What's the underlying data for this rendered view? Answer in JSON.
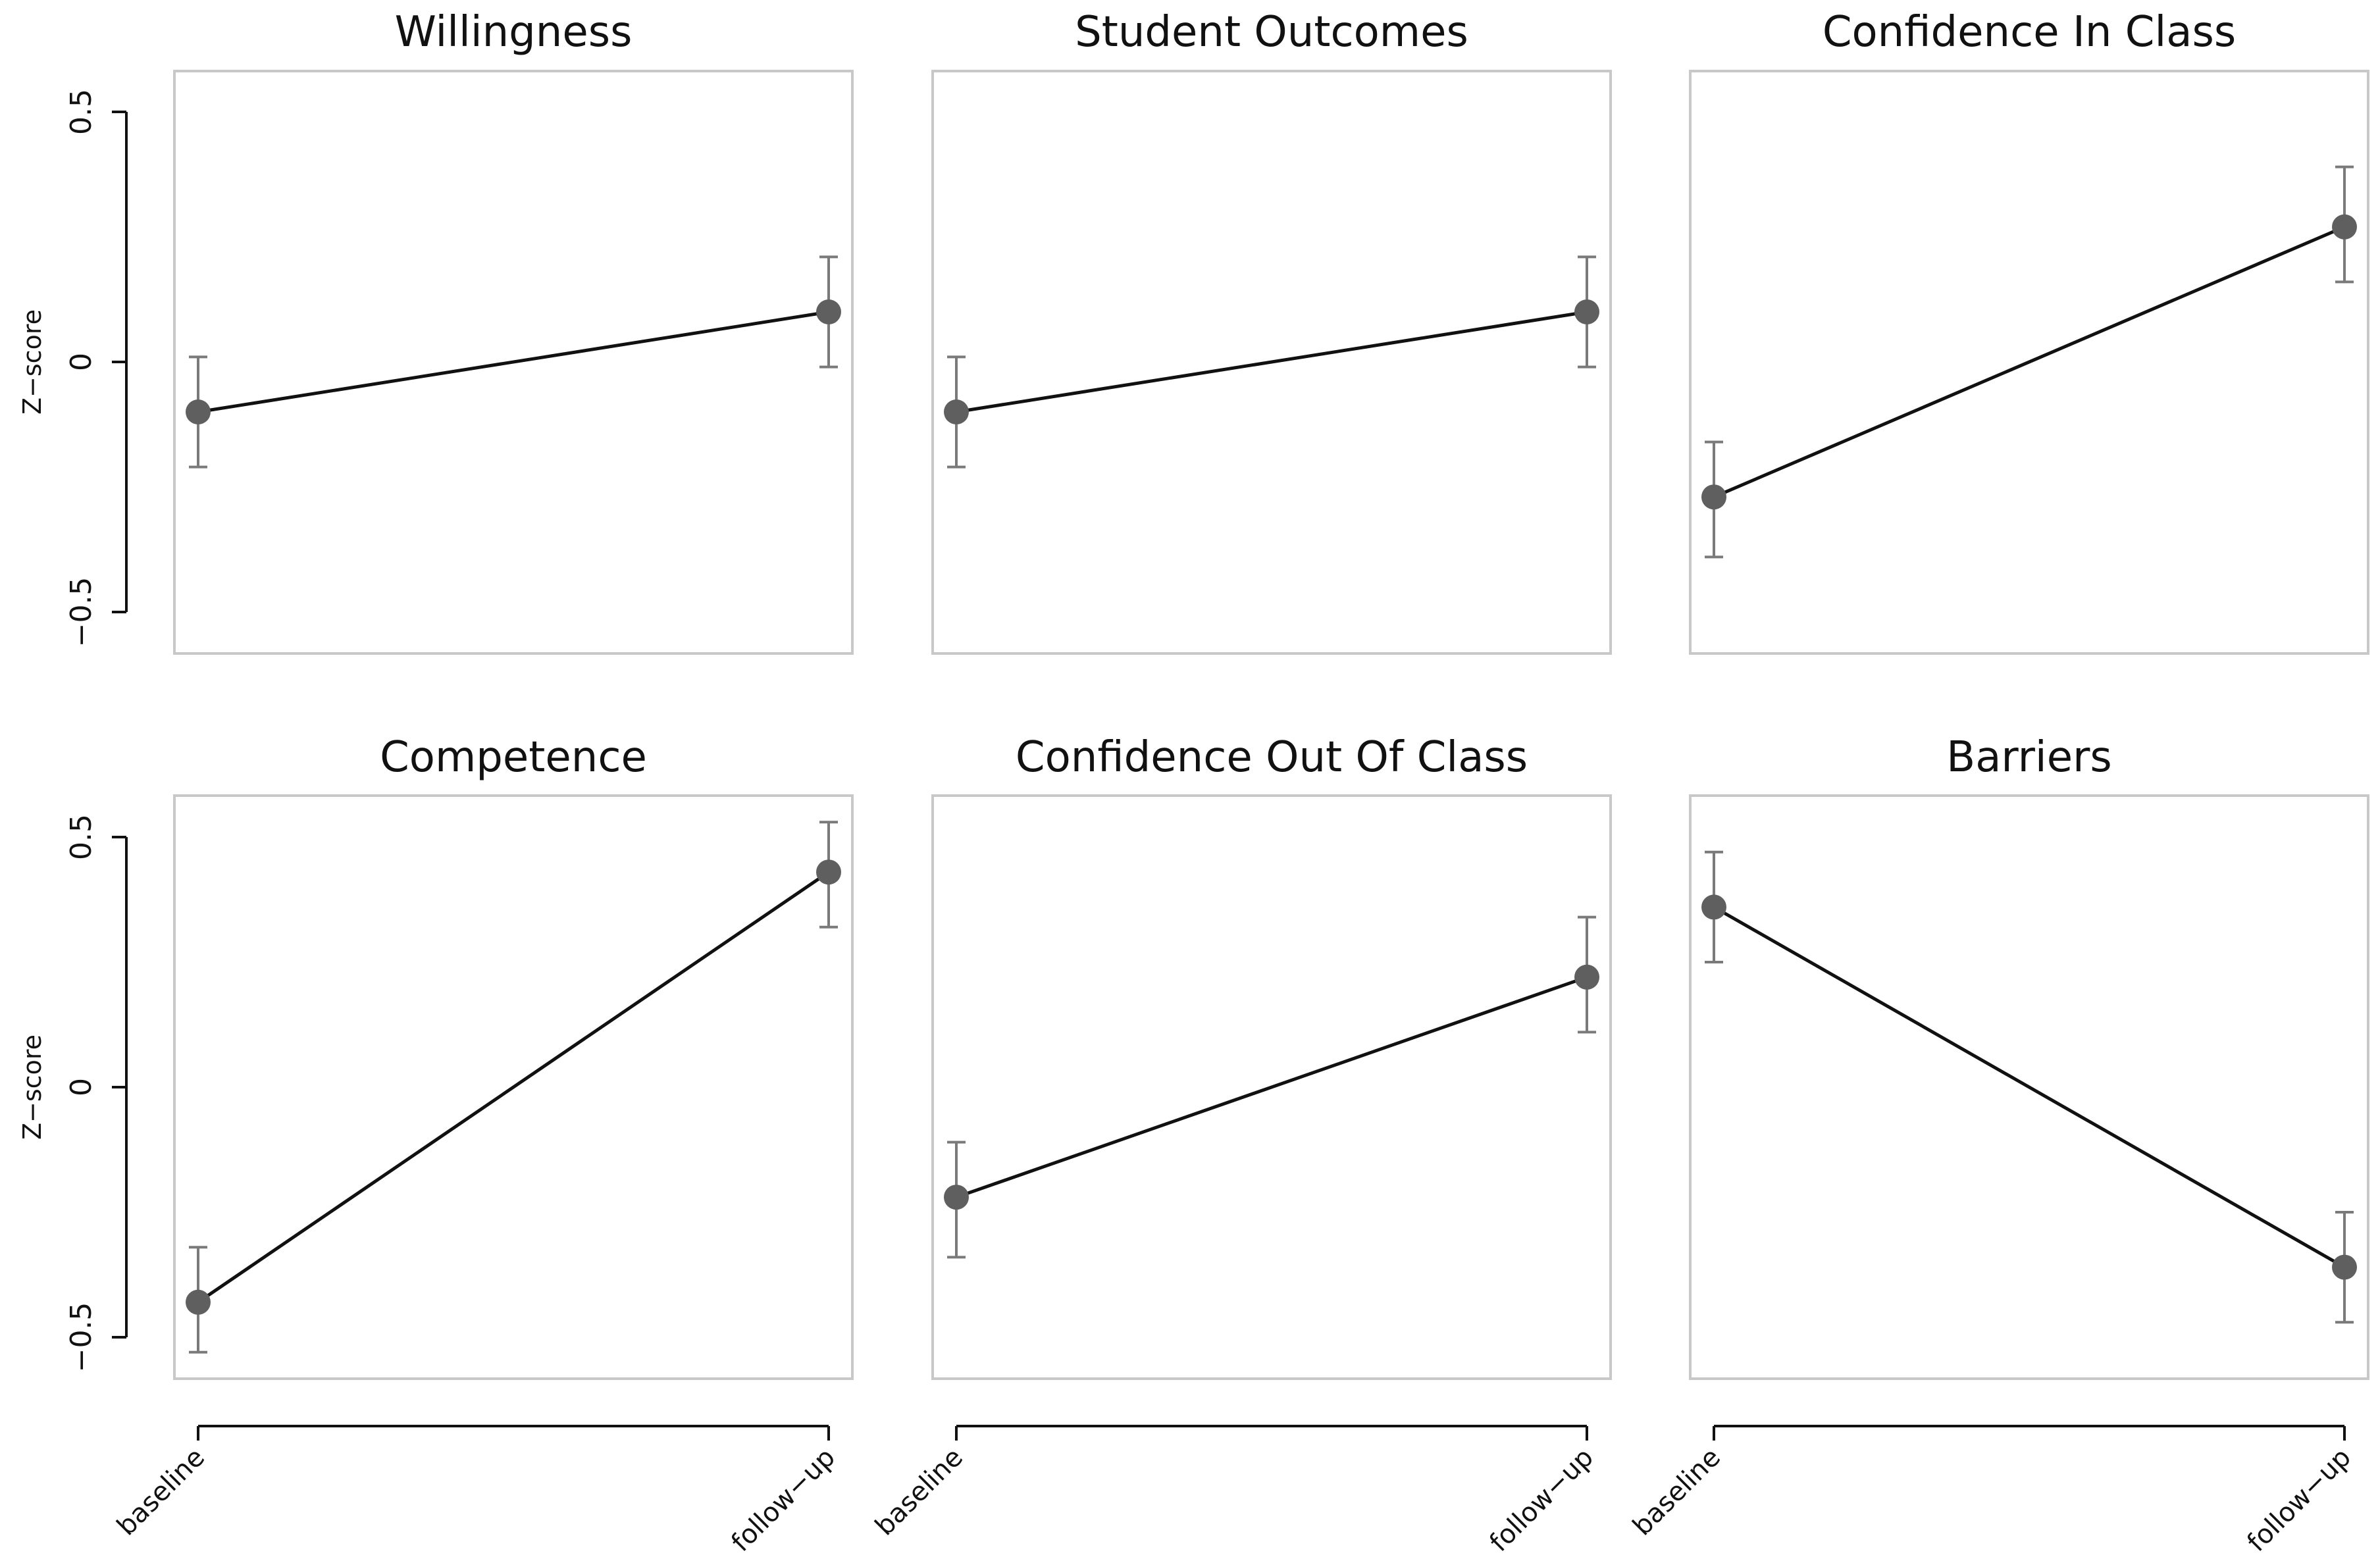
{
  "chart_data": [
    {
      "type": "line",
      "title": "Willingness",
      "ylabel": "Z−score",
      "x": [
        "baseline",
        "follow−up"
      ],
      "ylim": [
        -0.6,
        0.6
      ],
      "yticks": [
        "−0.5",
        "0",
        "0.5"
      ],
      "yticks_values": [
        -0.5,
        0,
        0.5
      ],
      "values": [
        -0.1,
        0.1
      ],
      "error_low": [
        -0.21,
        -0.01
      ],
      "error_high": [
        0.01,
        0.21
      ]
    },
    {
      "type": "line",
      "title": "Student Outcomes",
      "x": [
        "baseline",
        "follow−up"
      ],
      "ylim": [
        -0.6,
        0.6
      ],
      "values": [
        -0.1,
        0.1
      ],
      "error_low": [
        -0.21,
        -0.01
      ],
      "error_high": [
        0.01,
        0.21
      ]
    },
    {
      "type": "line",
      "title": "Confidence In Class",
      "x": [
        "baseline",
        "follow−up"
      ],
      "ylim": [
        -0.6,
        0.6
      ],
      "values": [
        -0.27,
        0.27
      ],
      "error_low": [
        -0.39,
        0.16
      ],
      "error_high": [
        -0.16,
        0.39
      ]
    },
    {
      "type": "line",
      "title": "Competence",
      "ylabel": "Z−score",
      "x": [
        "baseline",
        "follow−up"
      ],
      "xticks": [
        "baseline",
        "follow−up"
      ],
      "ylim": [
        -0.6,
        0.6
      ],
      "yticks": [
        "−0.5",
        "0",
        "0.5"
      ],
      "yticks_values": [
        -0.5,
        0,
        0.5
      ],
      "values": [
        -0.43,
        0.43
      ],
      "error_low": [
        -0.53,
        0.32
      ],
      "error_high": [
        -0.32,
        0.53
      ]
    },
    {
      "type": "line",
      "title": "Confidence Out Of Class",
      "x": [
        "baseline",
        "follow−up"
      ],
      "xticks": [
        "baseline",
        "follow−up"
      ],
      "ylim": [
        -0.6,
        0.6
      ],
      "values": [
        -0.22,
        0.22
      ],
      "error_low": [
        -0.34,
        0.11
      ],
      "error_high": [
        -0.11,
        0.34
      ]
    },
    {
      "type": "line",
      "title": "Barriers",
      "x": [
        "baseline",
        "follow−up"
      ],
      "xticks": [
        "baseline",
        "follow−up"
      ],
      "ylim": [
        -0.6,
        0.6
      ],
      "values": [
        0.36,
        -0.36
      ],
      "error_low": [
        0.25,
        -0.47
      ],
      "error_high": [
        0.47,
        -0.25
      ]
    }
  ],
  "colors": {
    "frame": "#c8c8c8",
    "line": "#111111",
    "point": "#5f5f5f",
    "errorbar": "#7a7a7a"
  }
}
